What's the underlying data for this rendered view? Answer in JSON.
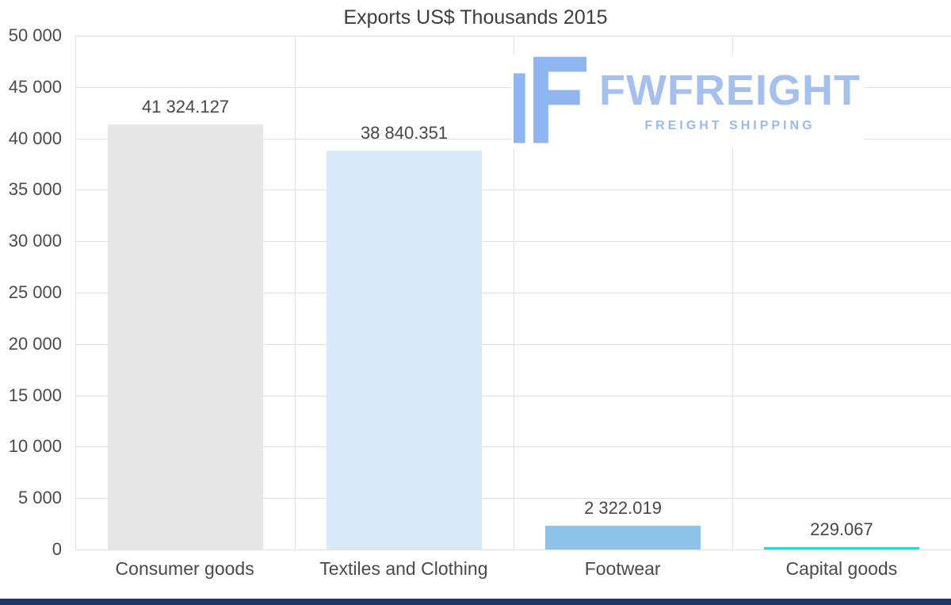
{
  "chart_data": {
    "type": "bar",
    "title": "Exports US$ Thousands 2015",
    "categories": [
      "Consumer goods",
      "Textiles and Clothing",
      "Footwear",
      "Capital goods"
    ],
    "values": [
      41324.127,
      38840.351,
      2322.019,
      229.067
    ],
    "value_labels": [
      "41 324.127",
      "38 840.351",
      "2 322.019",
      "229.067"
    ],
    "bar_colors": [
      "#e7e7e7",
      "#d8e9fa",
      "#8fc3ea",
      "#2bd6cd"
    ],
    "xlabel": "",
    "ylabel": "",
    "ylim": [
      0,
      50000
    ],
    "yticks": [
      50000,
      45000,
      40000,
      35000,
      30000,
      25000,
      20000,
      15000,
      10000,
      5000,
      0
    ],
    "ytick_labels": [
      "50 000",
      "45 000",
      "40 000",
      "35 000",
      "30 000",
      "25 000",
      "20 000",
      "15 000",
      "10 000",
      "5 000",
      "0"
    ],
    "grid": "horizontal",
    "legend": "none"
  },
  "watermark": {
    "name": "FWFREIGHT",
    "subtitle": "FREIGHT SHIPPING"
  },
  "colors": {
    "title_text": "#3d3d3d",
    "axis_text": "#4a4a4a",
    "value_text": "#474747",
    "grid_line": "#e2e2e2",
    "logo_text": "#a5c0ee",
    "logo_subtext": "#9cb9e9",
    "logo_icon": "#8fb5f0",
    "footer_bar": "#1d3866"
  }
}
